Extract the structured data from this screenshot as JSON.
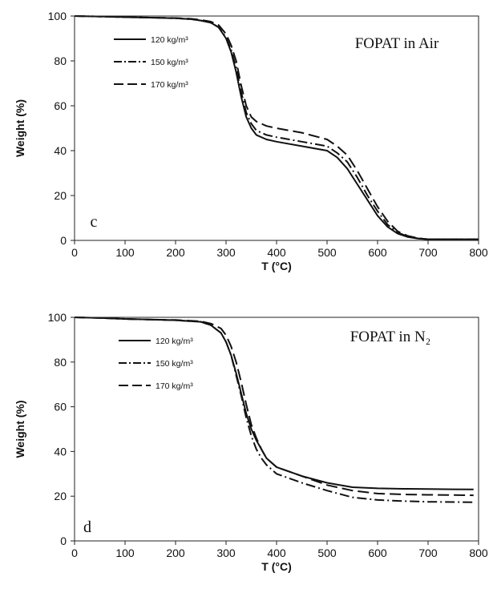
{
  "chart_data": [
    {
      "type": "line",
      "title": "FOPAT in Air",
      "panel_label": "c",
      "xlabel": "T (°C)",
      "ylabel": "Weight (%)",
      "xlim": [
        0,
        800
      ],
      "ylim": [
        0,
        100
      ],
      "xticks": [
        "0",
        "100",
        "200",
        "300",
        "400",
        "500",
        "600",
        "700",
        "800"
      ],
      "yticks": [
        "0",
        "20",
        "40",
        "60",
        "80",
        "100"
      ],
      "grid": false,
      "legend_position": "top-left",
      "series": [
        {
          "name": "120 kg/m³",
          "style": "solid",
          "x": [
            0,
            50,
            100,
            150,
            200,
            230,
            250,
            270,
            285,
            300,
            310,
            320,
            330,
            340,
            350,
            360,
            380,
            400,
            450,
            500,
            520,
            540,
            560,
            580,
            600,
            620,
            640,
            660,
            680,
            700,
            750,
            800
          ],
          "y": [
            100,
            99.8,
            99.5,
            99.3,
            99,
            98.6,
            98,
            97,
            95,
            90,
            84,
            75,
            64,
            55,
            50,
            47,
            45,
            44,
            42,
            40,
            37,
            32,
            25,
            18,
            11,
            6,
            3,
            1.5,
            0.8,
            0.5,
            0.5,
            0.5
          ]
        },
        {
          "name": "150 kg/m³",
          "style": "dashdot",
          "x": [
            0,
            50,
            100,
            150,
            200,
            230,
            250,
            270,
            285,
            300,
            310,
            320,
            330,
            340,
            350,
            360,
            380,
            400,
            450,
            500,
            520,
            540,
            560,
            580,
            600,
            620,
            640,
            660,
            680,
            700,
            750,
            800
          ],
          "y": [
            100,
            99.8,
            99.5,
            99.3,
            99,
            98.6,
            98,
            97,
            95,
            90.5,
            85,
            77,
            66,
            57,
            52,
            49,
            47,
            46,
            44,
            42,
            39,
            35,
            28,
            20,
            13,
            7,
            3.5,
            1.7,
            0.9,
            0.5,
            0.5,
            0.5
          ]
        },
        {
          "name": "170 kg/m³",
          "style": "dashed",
          "x": [
            0,
            50,
            100,
            150,
            200,
            230,
            250,
            270,
            285,
            300,
            310,
            320,
            330,
            340,
            350,
            360,
            380,
            400,
            450,
            500,
            520,
            540,
            560,
            580,
            600,
            620,
            640,
            660,
            680,
            700,
            750,
            800
          ],
          "y": [
            100,
            99.8,
            99.5,
            99.3,
            99.1,
            98.8,
            98.3,
            97.5,
            96,
            92,
            87,
            80,
            69,
            60,
            55,
            53,
            51,
            50,
            48,
            45,
            42,
            38,
            31,
            23,
            15,
            8.5,
            4,
            2,
            1,
            0.5,
            0.5,
            0.5
          ]
        }
      ]
    },
    {
      "type": "line",
      "title": "FOPAT in N₂",
      "panel_label": "d",
      "xlabel": "T (°C)",
      "ylabel": "Weight (%)",
      "xlim": [
        0,
        800
      ],
      "ylim": [
        0,
        100
      ],
      "xticks": [
        "0",
        "100",
        "200",
        "300",
        "400",
        "500",
        "600",
        "700",
        "800"
      ],
      "yticks": [
        "0",
        "20",
        "40",
        "60",
        "80",
        "100"
      ],
      "grid": false,
      "legend_position": "top-left",
      "series": [
        {
          "name": "120 kg/m³",
          "style": "solid",
          "x": [
            0,
            50,
            100,
            150,
            200,
            250,
            270,
            290,
            300,
            310,
            320,
            330,
            340,
            350,
            360,
            370,
            380,
            400,
            450,
            500,
            550,
            600,
            650,
            700,
            750,
            790
          ],
          "y": [
            100,
            99.7,
            99.3,
            99,
            98.7,
            98,
            96.5,
            93,
            89,
            83,
            75,
            66,
            57,
            50,
            45,
            41,
            37,
            33,
            29,
            26,
            24,
            23.5,
            23.3,
            23.2,
            23.1,
            23
          ]
        },
        {
          "name": "150 kg/m³",
          "style": "dashdot",
          "x": [
            0,
            50,
            100,
            150,
            200,
            250,
            270,
            290,
            300,
            310,
            320,
            330,
            340,
            350,
            360,
            370,
            380,
            400,
            450,
            500,
            550,
            600,
            650,
            700,
            750,
            790
          ],
          "y": [
            100,
            99.7,
            99.3,
            99,
            98.7,
            98,
            96.5,
            93,
            89,
            83,
            74,
            65,
            55,
            47,
            41,
            37,
            34,
            30,
            26,
            22.5,
            19.5,
            18.3,
            17.8,
            17.5,
            17.4,
            17.3
          ]
        },
        {
          "name": "170 kg/m³",
          "style": "dashed",
          "x": [
            0,
            50,
            100,
            150,
            200,
            250,
            270,
            290,
            300,
            310,
            320,
            330,
            340,
            350,
            360,
            370,
            380,
            400,
            450,
            500,
            550,
            600,
            650,
            700,
            750,
            790
          ],
          "y": [
            100,
            99.7,
            99.3,
            99,
            98.8,
            98.2,
            97.2,
            95,
            92,
            87,
            80,
            71,
            61,
            52,
            46,
            41,
            37,
            33,
            29,
            25,
            22.5,
            21.2,
            20.8,
            20.6,
            20.5,
            20.4
          ]
        }
      ]
    }
  ]
}
